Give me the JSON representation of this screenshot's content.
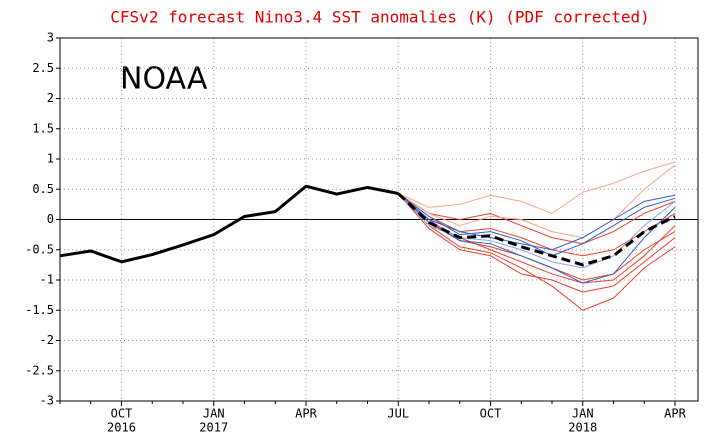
{
  "chart_data": {
    "type": "line",
    "title": "CFSv2 forecast Nino3.4 SST anomalies (K) (PDF corrected)",
    "annotation": "NOAA",
    "categories": [
      null,
      null,
      "OCT",
      null,
      null,
      "JAN",
      null,
      null,
      "APR",
      null,
      null,
      "JUL",
      null,
      null,
      "OCT",
      null,
      null,
      "JAN",
      null,
      null,
      "APR"
    ],
    "category_years": [
      null,
      null,
      "2016",
      null,
      null,
      "2017",
      null,
      null,
      null,
      null,
      null,
      null,
      null,
      null,
      null,
      null,
      null,
      "2018",
      null,
      null,
      null
    ],
    "ylim": [
      -3,
      3
    ],
    "yticks": [
      -3,
      -2.5,
      -2,
      -1.5,
      -1,
      -0.5,
      0,
      0.5,
      1,
      1.5,
      2,
      2.5,
      3
    ],
    "grid": true,
    "series": [
      {
        "color": "#e8432a",
        "values": [
          null,
          null,
          null,
          null,
          null,
          null,
          null,
          null,
          null,
          null,
          null,
          0.43,
          0.0,
          -0.35,
          -0.45,
          -0.6,
          -0.8,
          -1.0,
          -0.9,
          -0.5,
          -0.2
        ]
      },
      {
        "color": "#e8432a",
        "values": [
          null,
          null,
          null,
          null,
          null,
          null,
          null,
          null,
          null,
          null,
          null,
          0.43,
          -0.1,
          -0.45,
          -0.55,
          -0.8,
          -1.1,
          -1.5,
          -1.3,
          -0.8,
          -0.45
        ]
      },
      {
        "color": "#e8432a",
        "values": [
          null,
          null,
          null,
          null,
          null,
          null,
          null,
          null,
          null,
          null,
          null,
          0.43,
          0.05,
          -0.2,
          -0.15,
          -0.3,
          -0.5,
          -0.6,
          -0.5,
          -0.2,
          0.1
        ]
      },
      {
        "color": "#e8432a",
        "values": [
          null,
          null,
          null,
          null,
          null,
          null,
          null,
          null,
          null,
          null,
          null,
          0.43,
          -0.15,
          -0.5,
          -0.6,
          -0.9,
          -1.0,
          -1.2,
          -1.1,
          -0.7,
          -0.3
        ]
      },
      {
        "color": "#e8432a",
        "values": [
          null,
          null,
          null,
          null,
          null,
          null,
          null,
          null,
          null,
          null,
          null,
          0.43,
          0.1,
          0.0,
          0.1,
          -0.1,
          -0.3,
          -0.4,
          -0.2,
          0.1,
          0.3
        ]
      },
      {
        "color": "#e8432a",
        "values": [
          null,
          null,
          null,
          null,
          null,
          null,
          null,
          null,
          null,
          null,
          null,
          0.43,
          -0.05,
          -0.3,
          -0.5,
          -0.7,
          -0.9,
          -1.05,
          -1.0,
          -0.6,
          -0.1
        ]
      },
      {
        "color": "#f4a58a",
        "values": [
          null,
          null,
          null,
          null,
          null,
          null,
          null,
          null,
          null,
          null,
          null,
          0.43,
          0.2,
          0.25,
          0.4,
          0.3,
          0.1,
          0.45,
          0.6,
          0.8,
          0.95
        ]
      },
      {
        "color": "#f4a58a",
        "values": [
          null,
          null,
          null,
          null,
          null,
          null,
          null,
          null,
          null,
          null,
          null,
          0.43,
          0.1,
          -0.1,
          0.05,
          0.0,
          -0.2,
          -0.3,
          0.0,
          0.5,
          0.9
        ]
      },
      {
        "color": "#3060d0",
        "values": [
          null,
          null,
          null,
          null,
          null,
          null,
          null,
          null,
          null,
          null,
          null,
          0.43,
          0.0,
          -0.2,
          -0.3,
          -0.4,
          -0.5,
          -0.3,
          0.0,
          0.3,
          0.4
        ]
      },
      {
        "color": "#3060d0",
        "values": [
          null,
          null,
          null,
          null,
          null,
          null,
          null,
          null,
          null,
          null,
          null,
          0.43,
          -0.05,
          -0.35,
          -0.4,
          -0.6,
          -0.8,
          -1.05,
          -0.9,
          -0.3,
          0.2
        ]
      },
      {
        "color": "#3060d0",
        "values": [
          null,
          null,
          null,
          null,
          null,
          null,
          null,
          null,
          null,
          null,
          null,
          0.43,
          0.05,
          -0.25,
          -0.2,
          -0.35,
          -0.6,
          -0.4,
          -0.1,
          0.2,
          0.35
        ]
      },
      {
        "color": "#8aa8e8",
        "values": [
          null,
          null,
          null,
          null,
          null,
          null,
          null,
          null,
          null,
          null,
          null,
          0.43,
          -0.1,
          -0.3,
          -0.35,
          -0.5,
          -0.7,
          -0.8,
          -0.6,
          -0.1,
          0.3
        ]
      },
      {
        "color": "#000000",
        "width": 3,
        "values": [
          -0.6,
          -0.52,
          -0.7,
          -0.58,
          -0.42,
          -0.25,
          0.05,
          0.13,
          0.55,
          0.42,
          0.53,
          0.43,
          null,
          null,
          null,
          null,
          null,
          null,
          null,
          null,
          null
        ]
      },
      {
        "color": "#000000",
        "width": 3,
        "dashed": true,
        "values": [
          null,
          null,
          null,
          null,
          null,
          null,
          null,
          null,
          null,
          null,
          null,
          0.43,
          -0.05,
          -0.3,
          -0.27,
          -0.45,
          -0.6,
          -0.75,
          -0.6,
          -0.2,
          0.05
        ]
      }
    ]
  }
}
